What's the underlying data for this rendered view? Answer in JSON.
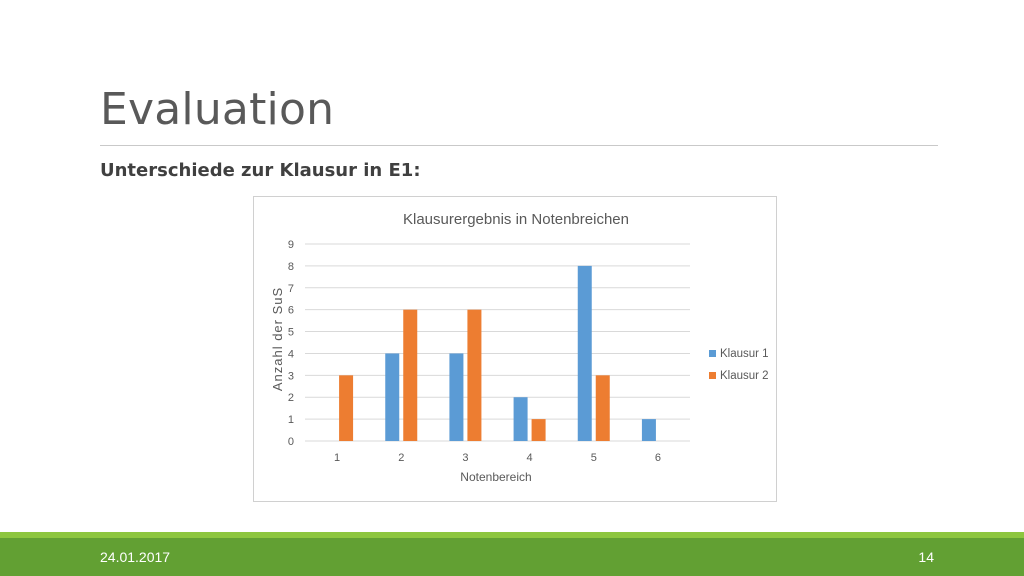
{
  "slide": {
    "title": "Evaluation",
    "subtitle": "Unterschiede zur Klausur in E1:",
    "footer_date": "24.01.2017",
    "page_number": "14"
  },
  "colors": {
    "accent_green": "#62a033",
    "accent_light_green": "#8dc63f",
    "series_1": "#5b9bd5",
    "series_2": "#ed7d31"
  },
  "chart_data": {
    "type": "bar",
    "title": "Klausurergebnis in Notenbreichen",
    "xlabel": "Notenbereich",
    "ylabel": "Anzahl der SuS",
    "categories": [
      "1",
      "2",
      "3",
      "4",
      "5",
      "6"
    ],
    "ylim": [
      0,
      9
    ],
    "yticks": [
      "0",
      "1",
      "2",
      "3",
      "4",
      "5",
      "6",
      "7",
      "8",
      "9"
    ],
    "grid": true,
    "legend_position": "right",
    "series": [
      {
        "name": "Klausur 1",
        "values": [
          0,
          4,
          4,
          2,
          8,
          1
        ]
      },
      {
        "name": "Klausur 2",
        "values": [
          3,
          6,
          6,
          1,
          3,
          0
        ]
      }
    ]
  }
}
